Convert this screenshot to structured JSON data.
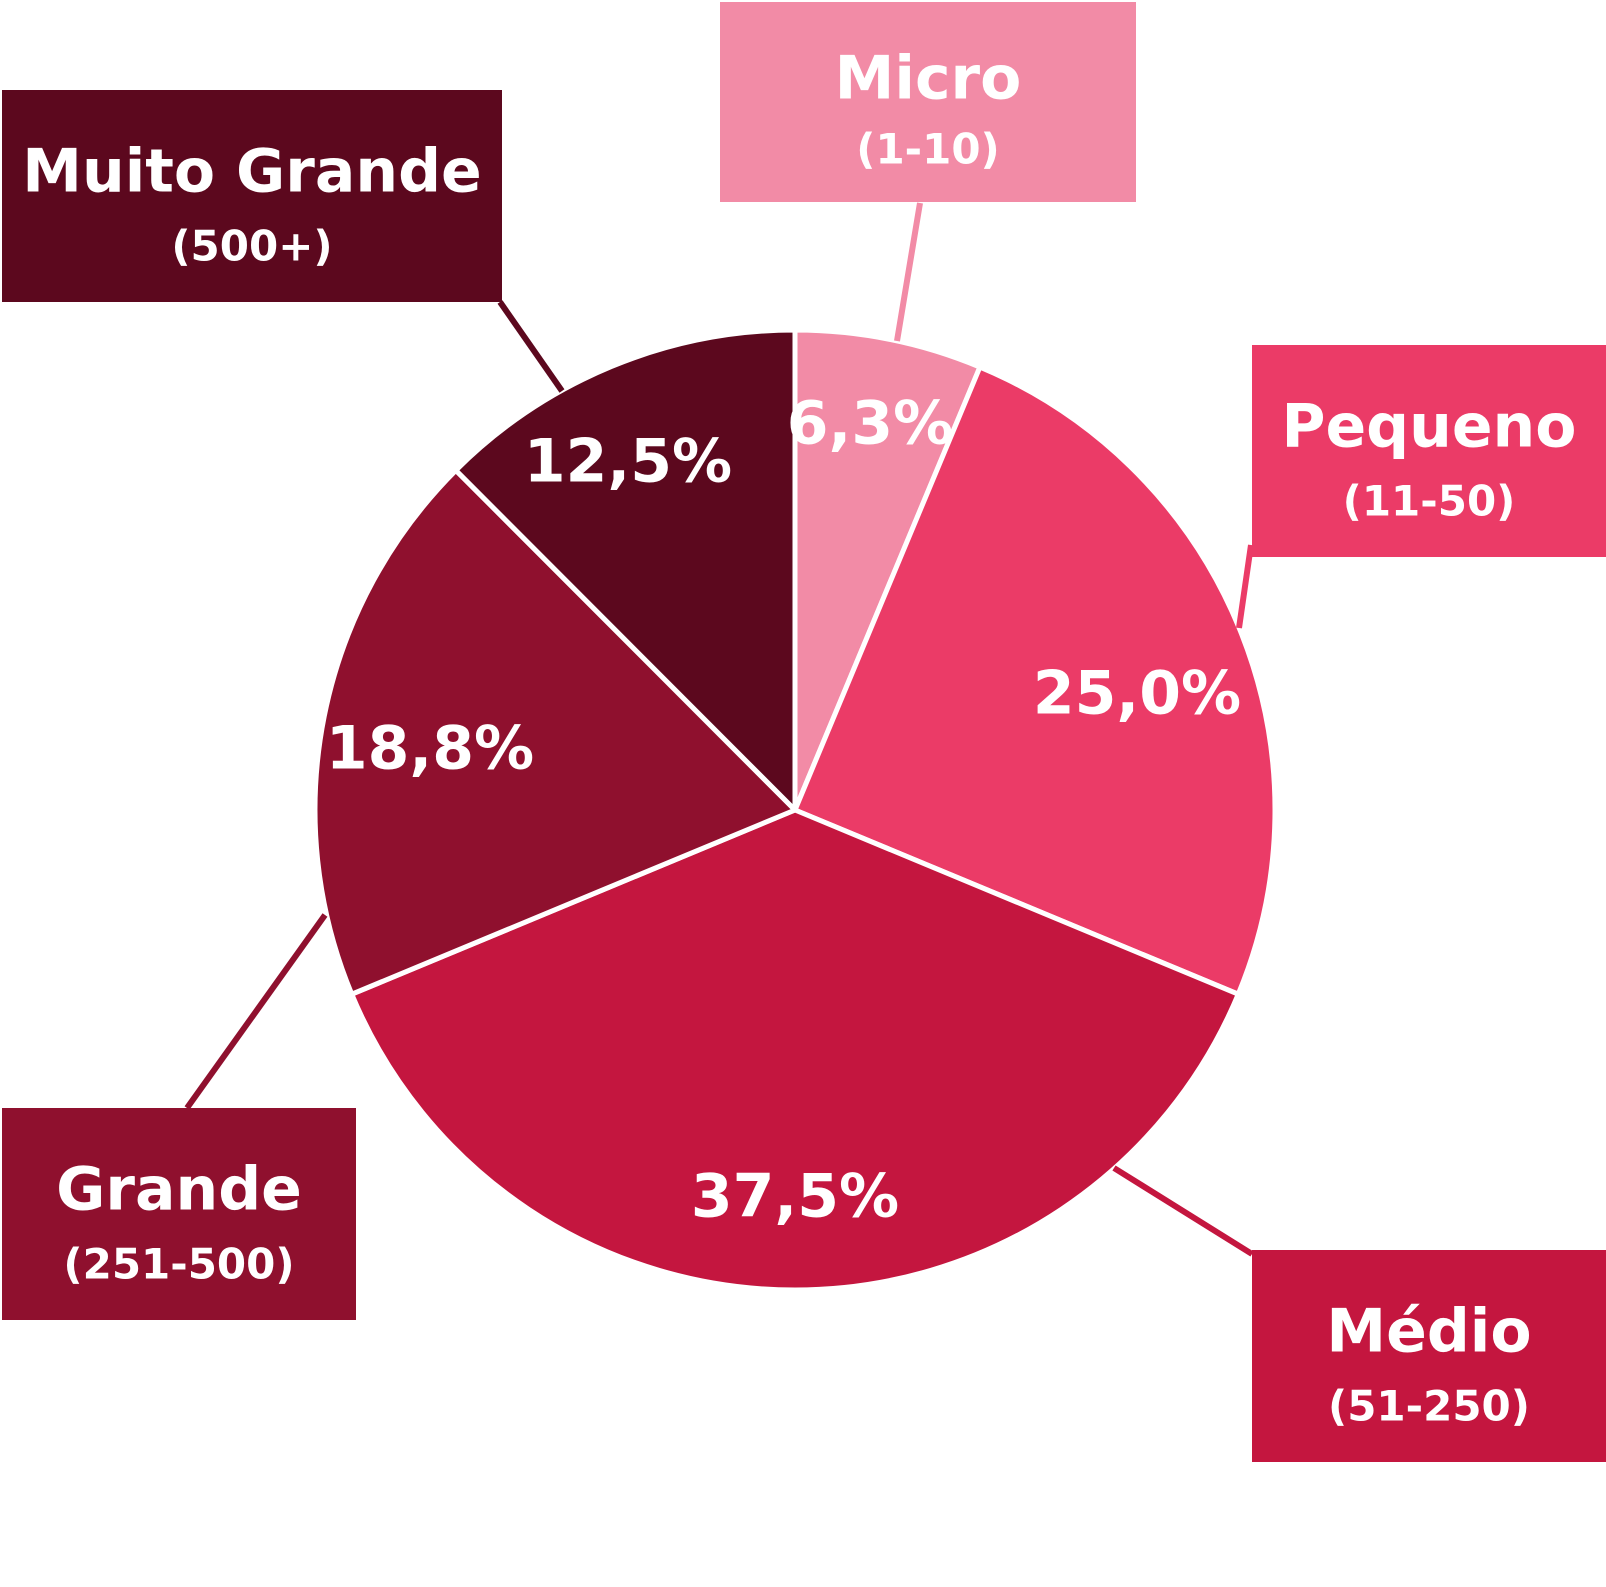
{
  "chart_data": {
    "type": "pie",
    "title": "",
    "start_angle_deg": 0,
    "direction": "clockwise",
    "slices": [
      {
        "name": "Micro",
        "range": "(1-10)",
        "value": 6.3,
        "label": "6,3%",
        "color": "#f28ba6"
      },
      {
        "name": "Pequeno",
        "range": "(11-50)",
        "value": 25.0,
        "label": "25,0%",
        "color": "#eb3b67"
      },
      {
        "name": "Médio",
        "range": "(51-250)",
        "value": 37.5,
        "label": "37,5%",
        "color": "#c4163f"
      },
      {
        "name": "Grande",
        "range": "(251-500)",
        "value": 18.8,
        "label": "18,8%",
        "color": "#8f102e"
      },
      {
        "name": "Muito Grande",
        "range": "(500+)",
        "value": 12.5,
        "label": "12,5%",
        "color": "#5c081e"
      }
    ]
  }
}
